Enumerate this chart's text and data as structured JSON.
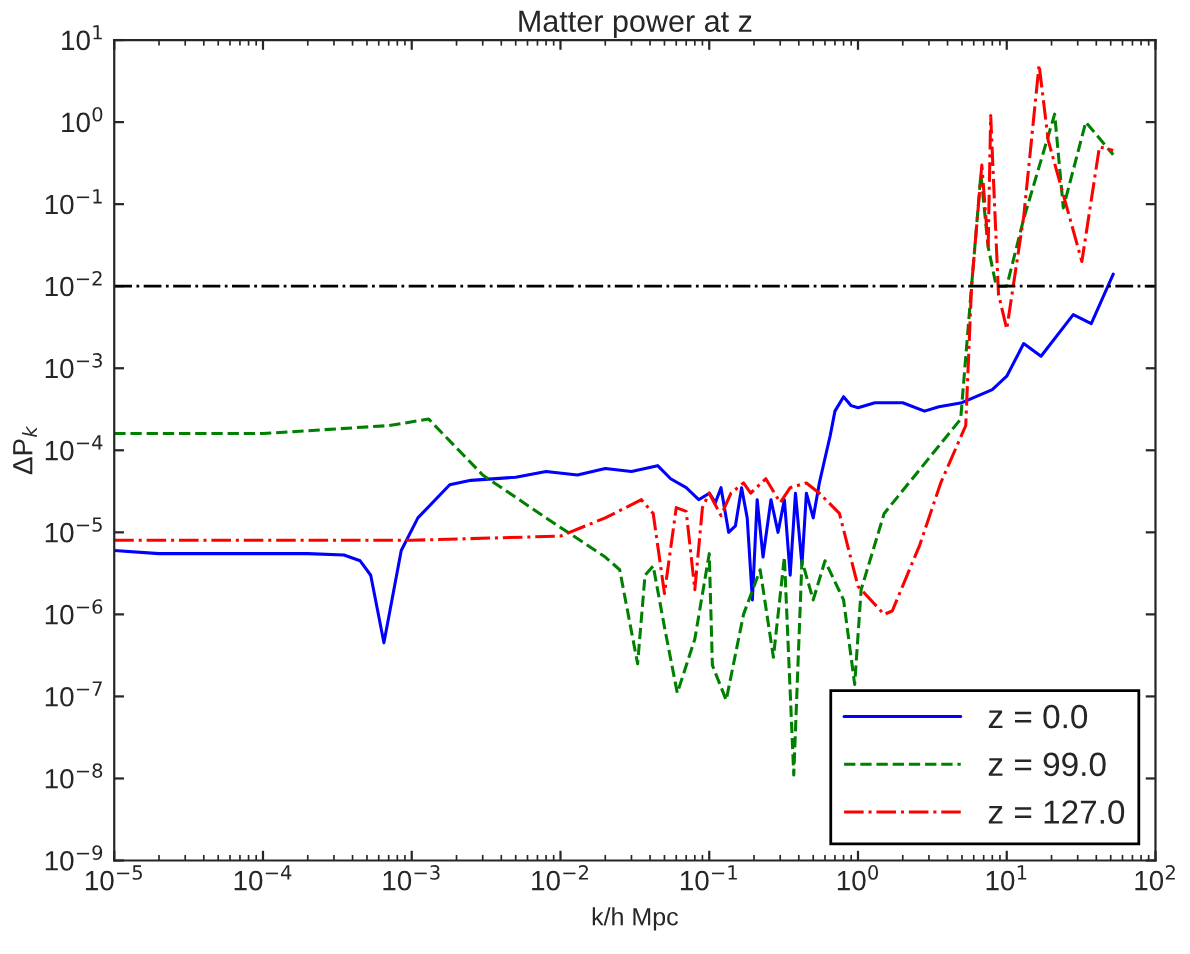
{
  "chart_data": {
    "type": "line",
    "title": "Matter power at z",
    "xlabel": "k/h Mpc",
    "ylabel": "ΔP$_{k}$",
    "log": "xy",
    "grid": false,
    "legend": "bottom right",
    "xlim": [
      1e-05,
      100
    ],
    "ylim": [
      1e-09,
      10
    ],
    "xticks": [
      {
        "value": 1e-05,
        "label": "10$^{−5}$"
      },
      {
        "value": 0.0001,
        "label": "10$^{−4}$"
      },
      {
        "value": 0.001,
        "label": "10$^{−3}$"
      },
      {
        "value": 0.01,
        "label": "10$^{−2}$"
      },
      {
        "value": 0.1,
        "label": "10$^{−1}$"
      },
      {
        "value": 1,
        "label": "10$^{0}$"
      },
      {
        "value": 10,
        "label": "10$^{1}$"
      },
      {
        "value": 100,
        "label": "10$^{2}$"
      }
    ],
    "yticks": [
      {
        "value": 1e-09,
        "label": "10$^{−9}$"
      },
      {
        "value": 1e-08,
        "label": "10$^{−8}$"
      },
      {
        "value": 1e-07,
        "label": "10$^{−7}$"
      },
      {
        "value": 1e-06,
        "label": "10$^{−6}$"
      },
      {
        "value": 1e-05,
        "label": "10$^{−5}$"
      },
      {
        "value": 0.0001,
        "label": "10$^{−4}$"
      },
      {
        "value": 0.001,
        "label": "10$^{−3}$"
      },
      {
        "value": 0.01,
        "label": "10$^{−2}$"
      },
      {
        "value": 0.1,
        "label": "10$^{−1}$"
      },
      {
        "value": 1,
        "label": "10$^{0}$"
      },
      {
        "value": 10,
        "label": "10$^{1}$"
      }
    ],
    "ref_lines": [
      {
        "axis": "y",
        "value": 0.01,
        "color": "#000000",
        "line_style": "dashdot"
      }
    ],
    "series": [
      {
        "name": "z = 0.0",
        "color": "#0000ff",
        "line_style": "solid",
        "x": [
          1e-05,
          2e-05,
          5e-05,
          0.0001,
          0.0002,
          0.00035,
          0.00045,
          0.00053,
          0.00065,
          0.00085,
          0.0011,
          0.0018,
          0.0025,
          0.005,
          0.008,
          0.013,
          0.02,
          0.03,
          0.045,
          0.055,
          0.07,
          0.085,
          0.1,
          0.11,
          0.12,
          0.135,
          0.15,
          0.165,
          0.18,
          0.195,
          0.21,
          0.23,
          0.26,
          0.29,
          0.32,
          0.35,
          0.38,
          0.42,
          0.45,
          0.5,
          0.55,
          0.6,
          0.65,
          0.7,
          0.8,
          0.9,
          1.0,
          1.3,
          2.0,
          2.8,
          3.5,
          5,
          8,
          10,
          13,
          17,
          28,
          37,
          52
        ],
        "values": [
          6e-06,
          5.5e-06,
          5.5e-06,
          5.5e-06,
          5.5e-06,
          5.3e-06,
          4.5e-06,
          3e-06,
          4.5e-07,
          6e-06,
          1.5e-05,
          3.8e-05,
          4.3e-05,
          4.7e-05,
          5.5e-05,
          5e-05,
          6e-05,
          5.5e-05,
          6.5e-05,
          4.5e-05,
          3.5e-05,
          2.5e-05,
          3e-05,
          2.3e-05,
          3.5e-05,
          1e-05,
          1.2e-05,
          3.5e-05,
          1.5e-05,
          1.5e-06,
          2.5e-05,
          5e-06,
          2.5e-05,
          1e-05,
          2.5e-05,
          3e-06,
          3e-05,
          4e-06,
          3e-05,
          1.5e-05,
          4e-05,
          8e-05,
          0.00015,
          0.0003,
          0.00045,
          0.00035,
          0.00033,
          0.00038,
          0.00038,
          0.0003,
          0.00034,
          0.00038,
          0.00055,
          0.0008,
          0.002,
          0.0014,
          0.0045,
          0.0035,
          0.014
        ]
      },
      {
        "name": "z = 99.0",
        "color": "#008000",
        "line_style": "dashed",
        "x": [
          1e-05,
          0.0001,
          0.0007,
          0.0013,
          0.003,
          0.008,
          0.02,
          0.025,
          0.033,
          0.037,
          0.042,
          0.05,
          0.061,
          0.08,
          0.1,
          0.105,
          0.13,
          0.17,
          0.22,
          0.27,
          0.32,
          0.37,
          0.42,
          0.5,
          0.6,
          0.8,
          0.95,
          1.05,
          1.5,
          4.9,
          5.8,
          6.7,
          7.5,
          8.5,
          10,
          13,
          21,
          24,
          34,
          52
        ],
        "values": [
          0.00016,
          0.00016,
          0.0002,
          0.00024,
          5e-05,
          1.5e-05,
          5e-06,
          3.5e-06,
          2.5e-07,
          3e-06,
          3.9e-06,
          7e-07,
          1.1e-07,
          5e-07,
          5.5e-06,
          2.4e-07,
          9e-08,
          1e-06,
          3.5e-06,
          3e-07,
          5e-06,
          1.1e-08,
          4.5e-06,
          1.5e-06,
          4.5e-06,
          1.5e-06,
          1.4e-07,
          2e-06,
          1.7e-05,
          0.00024,
          0.01,
          0.23,
          0.03,
          0.01,
          0.01,
          0.066,
          1.25,
          0.09,
          1.0,
          0.4
        ]
      },
      {
        "name": "z = 127.0",
        "color": "#ff0000",
        "line_style": "dashdot",
        "x": [
          1e-05,
          0.0001,
          0.001,
          0.01,
          0.02,
          0.035,
          0.042,
          0.05,
          0.06,
          0.07,
          0.08,
          0.09,
          0.1,
          0.12,
          0.14,
          0.17,
          0.19,
          0.24,
          0.3,
          0.35,
          0.45,
          0.55,
          0.75,
          1.0,
          1.5,
          1.7,
          2.6,
          3.6,
          5.3,
          5.8,
          6.8,
          7.5,
          7.8,
          8.8,
          10,
          13,
          16.5,
          19,
          32,
          42,
          52
        ],
        "values": [
          8e-06,
          8e-06,
          8e-06,
          9e-06,
          1.5e-05,
          2.5e-05,
          1.7e-05,
          1.8e-06,
          2e-05,
          1.8e-05,
          2e-06,
          2e-05,
          3e-05,
          1.6e-05,
          3e-05,
          4e-05,
          3e-05,
          4.5e-05,
          2.3e-05,
          3.5e-05,
          4e-05,
          3e-05,
          1.7e-05,
          2.2e-06,
          1e-06,
          1.1e-06,
          7e-06,
          4e-05,
          0.0002,
          0.01,
          0.3,
          0.03,
          1.2,
          0.008,
          0.003,
          0.07,
          5,
          0.6,
          0.02,
          0.5,
          0.45
        ]
      }
    ]
  }
}
